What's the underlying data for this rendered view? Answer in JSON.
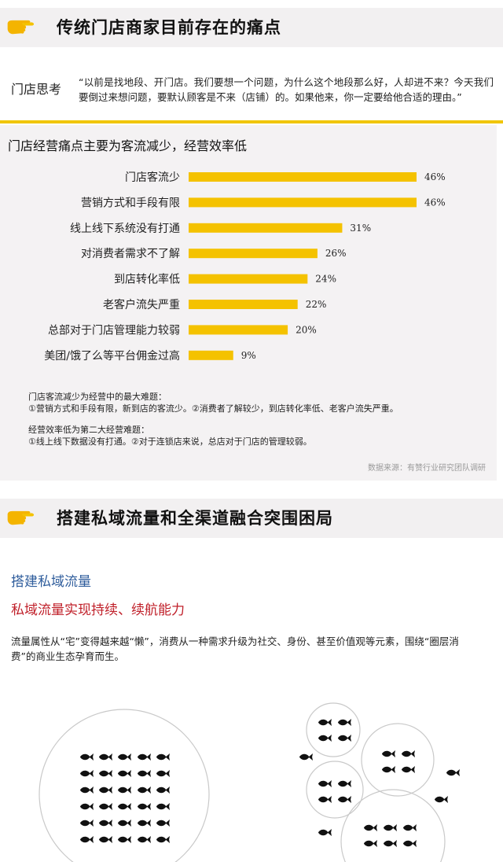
{
  "section1": {
    "title": "传统门店商家目前存在的痛点",
    "hand_icon": "pointing-hand-icon"
  },
  "thinking": {
    "label": "门店思考",
    "quote": "“以前是找地段、开门店。我们要想一个问题，为什么这个地段那么好，人却进不来？今天我们要倒过来想问题，要默认顾客是不来（店铺）的。如果他来，你一定要给他合适的理由。”"
  },
  "accent_color": "#f4c200",
  "chart_data": {
    "type": "bar",
    "orientation": "horizontal",
    "title": "门店经营痛点主要为客流减少，经营效率低",
    "categories": [
      "门店客流少",
      "营销方式和手段有限",
      "线上线下系统没有打通",
      "对消费者需求不了解",
      "到店转化率低",
      "老客户流失严重",
      "总部对于门店管理能力较弱",
      "美团/饿了么等平台佣金过高"
    ],
    "values": [
      46,
      46,
      31,
      26,
      24,
      22,
      20,
      9
    ],
    "labels": [
      "46%",
      "46%",
      "31%",
      "26%",
      "24%",
      "22%",
      "20%",
      "9%"
    ],
    "xlim": [
      0,
      50
    ],
    "bar_color": "#f4c200",
    "grid": false
  },
  "notes": [
    "门店客流减少为经营中的最大难题：",
    "①营销方式和手段有限，新到店的客流少。②消费者了解较少，到店转化率低、老客户流失严重。",
    "经营效率低为第二大经营难题：",
    "①线上线下数据没有打通。②对于连锁店来说，总店对于门店的管理较弱。"
  ],
  "source": "数据来源：有赞行业研究团队调研",
  "section2": {
    "title": "搭建私域流量和全渠道融合突围困局",
    "hand_icon": "pointing-hand-icon"
  },
  "private": {
    "subhead": "搭建私域流量",
    "redhead": "私域流量实现持续、续航能力",
    "body": "流量属性从“宅”变得越来越“懒”，消费从一种需求升级为社交、身份、甚至价值观等元素，围绕“圈层消费”的商业生态孕育而生。"
  },
  "illustration": {
    "icon": "fish-icon",
    "color": "#111111"
  }
}
